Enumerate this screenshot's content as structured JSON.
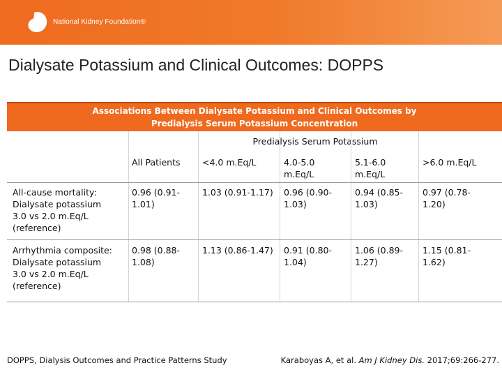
{
  "brand": {
    "name": "National Kidney Foundation®",
    "color": "#ef6b1f"
  },
  "slide": {
    "title": "Dialysate Potassium and Clinical Outcomes: DOPPS"
  },
  "table": {
    "caption_line1": "Associations Between Dialysate Potassium and Clinical Outcomes by",
    "caption_line2": "Predialysis Serum Potassium Concentration",
    "group_header": "Predialysis Serum Potassium",
    "columns": [
      {
        "line1": "All Patients",
        "line2": ""
      },
      {
        "line1": "<4.0 m.Eq/L",
        "line2": ""
      },
      {
        "line1": "4.0-5.0",
        "line2": "m.Eq/L"
      },
      {
        "line1": "5.1-6.0",
        "line2": "m.Eq/L"
      },
      {
        "line1": ">6.0 m.Eq/L",
        "line2": ""
      }
    ],
    "rows": [
      {
        "label": [
          "All-cause mortality:",
          "Dialysate potassium",
          "3.0 vs 2.0 m.Eq/L",
          "(reference)"
        ],
        "cells": [
          [
            "0.96 (0.91-",
            "1.01)"
          ],
          [
            "1.03 (0.91-1.17)",
            ""
          ],
          [
            "0.96 (0.90-",
            "1.03)"
          ],
          [
            "0.94 (0.85-",
            "1.03)"
          ],
          [
            "0.97 (0.78-",
            "1.20)"
          ]
        ]
      },
      {
        "label": [
          "Arrhythmia composite:",
          "Dialysate potassium",
          "3.0 vs 2.0 m.Eq/L",
          "(reference)"
        ],
        "cells": [
          [
            "0.98 (0.88-",
            "1.08)"
          ],
          [
            "1.13 (0.86-1.47)",
            ""
          ],
          [
            "0.91 (0.80-",
            "1.04)"
          ],
          [
            "1.06 (0.89-",
            "1.27)"
          ],
          [
            "1.15 (0.81-",
            "1.62)"
          ]
        ]
      }
    ]
  },
  "footer": {
    "study_note": "DOPPS, Dialysis Outcomes and Practice Patterns Study",
    "citation_authors": "Karaboyas A, et al. ",
    "citation_journal": "Am J Kidney Dis.",
    "citation_details": " 2017;69:266-277."
  }
}
